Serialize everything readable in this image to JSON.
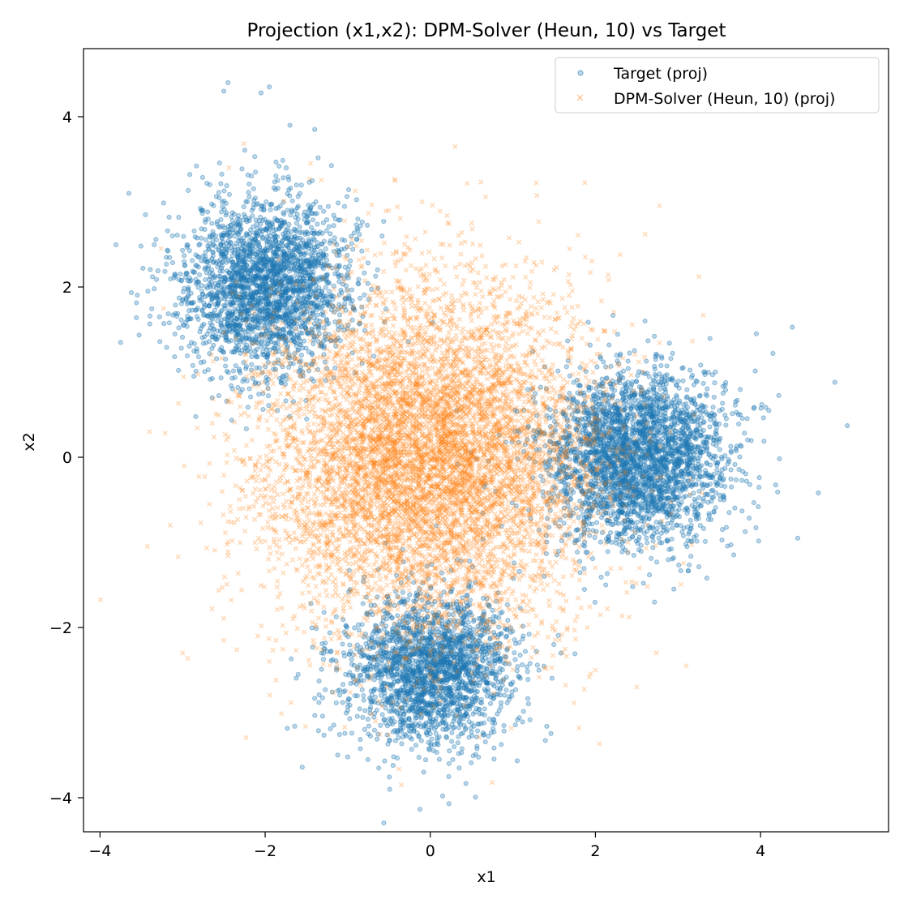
{
  "chart_data": {
    "type": "scatter",
    "title": "Projection (x1,x2): DPM-Solver (Heun, 10) vs Target",
    "xlabel": "x1",
    "ylabel": "x2",
    "xlim": [
      -4.2,
      5.55
    ],
    "ylim": [
      -4.4,
      4.8
    ],
    "xticks": [
      -4,
      -2,
      0,
      2,
      4
    ],
    "yticks": [
      -4,
      -2,
      0,
      2,
      4
    ],
    "grid": false,
    "legend_position": "top-right",
    "series": [
      {
        "name": "Target (proj)",
        "marker": "circle",
        "color": "#1f77b4",
        "alpha": 0.3,
        "clusters": [
          {
            "center": [
              -2.0,
              2.0
            ],
            "std": [
              0.5,
              0.5
            ],
            "count": 2500
          },
          {
            "center": [
              2.5,
              0.0
            ],
            "std": [
              0.55,
              0.5
            ],
            "count": 3000
          },
          {
            "center": [
              0.0,
              -2.5
            ],
            "std": [
              0.5,
              0.45
            ],
            "count": 2200
          }
        ],
        "points": [
          [
            -3.75,
            1.35
          ],
          [
            -3.65,
            3.1
          ],
          [
            -3.45,
            2.85
          ],
          [
            -3.48,
            2.22
          ],
          [
            -3.42,
            1.95
          ],
          [
            -2.45,
            4.4
          ],
          [
            -2.5,
            4.3
          ],
          [
            -1.95,
            4.35
          ],
          [
            -2.05,
            4.28
          ],
          [
            -1.4,
            3.85
          ],
          [
            -1.7,
            3.9
          ],
          [
            4.9,
            0.88
          ],
          [
            5.05,
            0.37
          ],
          [
            4.7,
            -0.42
          ],
          [
            4.45,
            -0.95
          ],
          [
            3.95,
            1.45
          ],
          [
            4.15,
            1.22
          ],
          [
            4.1,
            0.55
          ],
          [
            2.6,
            1.6
          ],
          [
            0.15,
            -3.98
          ],
          [
            -0.45,
            -3.62
          ],
          [
            -0.08,
            -3.7
          ],
          [
            0.35,
            -3.65
          ],
          [
            -1.0,
            -3.52
          ],
          [
            3.35,
            -1.42
          ],
          [
            2.95,
            -1.55
          ],
          [
            2.45,
            -1.52
          ],
          [
            -1.6,
            -2.55
          ]
        ]
      },
      {
        "name": "DPM-Solver (Heun, 10) (proj)",
        "marker": "x",
        "color": "#ff7f0e",
        "alpha": 0.3,
        "clusters": [
          {
            "center": [
              0.0,
              0.0
            ],
            "std": [
              1.0,
              1.0
            ],
            "count": 7700
          }
        ],
        "points": [
          [
            0.3,
            3.65
          ],
          [
            -1.45,
            3.45
          ],
          [
            -0.1,
            3.0
          ],
          [
            0.5,
            2.75
          ],
          [
            2.6,
            2.62
          ],
          [
            3.1,
            -2.45
          ],
          [
            2.5,
            -2.7
          ],
          [
            2.0,
            -2.5
          ],
          [
            0.75,
            -3.82
          ],
          [
            -3.0,
            -2.3
          ],
          [
            -2.5,
            -2.15
          ],
          [
            -3.15,
            -0.8
          ],
          [
            -3.4,
            0.3
          ],
          [
            -3.05,
            0.63
          ],
          [
            1.8,
            -3.18
          ],
          [
            -1.95,
            -2.4
          ],
          [
            -0.35,
            -3.85
          ],
          [
            1.5,
            2.2
          ],
          [
            2.3,
            2.38
          ],
          [
            -2.35,
            1.4
          ]
        ]
      }
    ]
  }
}
